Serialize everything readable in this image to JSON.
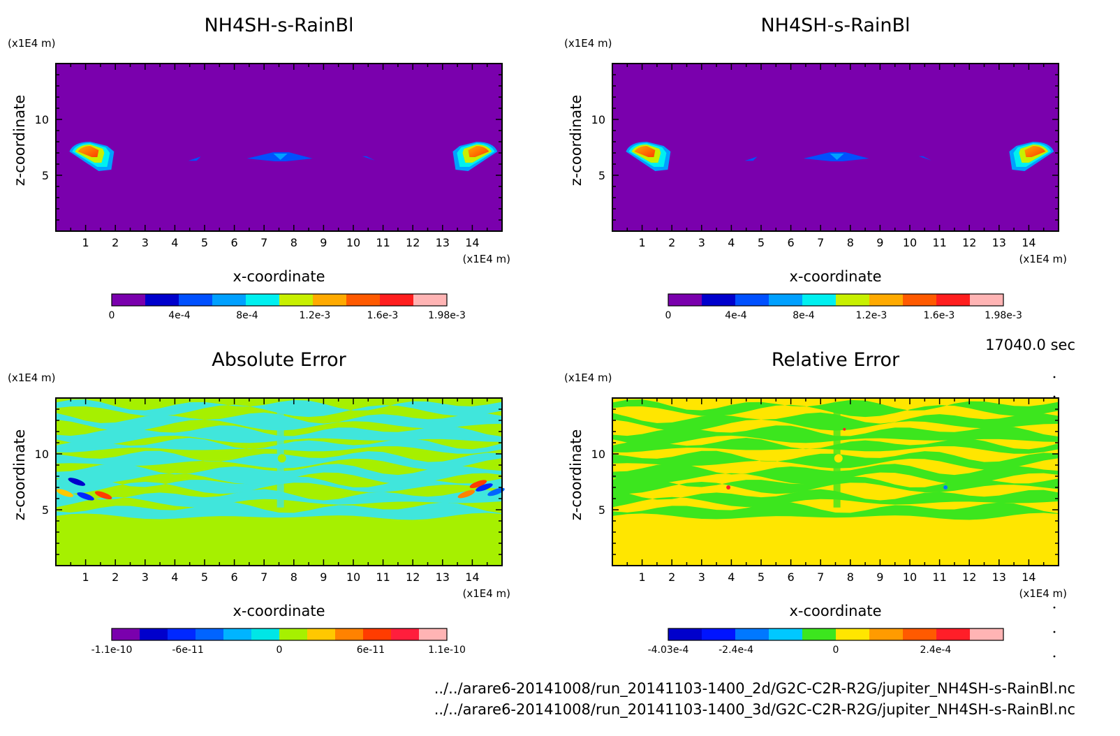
{
  "time_label": "17040.0 sec",
  "file_lines": [
    "../../arare6-20141008/run_20141103-1400_2d/G2C-C2R-R2G/jupiter_NH4SH-s-RainBl.nc",
    "../../arare6-20141008/run_20141103-1400_3d/G2C-C2R-R2G/jupiter_NH4SH-s-RainBl.nc"
  ],
  "chart_data": [
    {
      "type": "heatmap",
      "title": "NH4SH-s-RainBl",
      "xlabel": "x-coordinate",
      "ylabel": "z-coordinate",
      "x_unit": "(x1E4 m)",
      "y_unit": "(x1E4 m)",
      "xlim": [
        0,
        15
      ],
      "ylim": [
        0,
        15
      ],
      "x_ticks": [
        "1",
        "2",
        "3",
        "4",
        "5",
        "6",
        "7",
        "8",
        "9",
        "10",
        "11",
        "12",
        "13",
        "14"
      ],
      "y_ticks": [
        "5",
        "10"
      ],
      "background_color": "#7a00ad",
      "colorbar": {
        "colors": [
          "#7a00ad",
          "#0000cc",
          "#0050ff",
          "#00a0ff",
          "#00f0f0",
          "#c8f000",
          "#ffaa00",
          "#ff5a00",
          "#ff1e1e",
          "#ffb4b4"
        ],
        "labels": [
          "0",
          "4e-4",
          "8e-4",
          "1.2e-3",
          "1.6e-3",
          "1.98e-3"
        ],
        "range": [
          0,
          0.00198
        ]
      },
      "features": [
        "rain-blob-left",
        "rain-blob-right",
        "rain-band-center",
        "rain-streak-left",
        "rain-streak-right"
      ]
    },
    {
      "type": "heatmap",
      "title": "NH4SH-s-RainBl",
      "xlabel": "x-coordinate",
      "ylabel": "z-coordinate",
      "x_unit": "(x1E4 m)",
      "y_unit": "(x1E4 m)",
      "xlim": [
        0,
        15
      ],
      "ylim": [
        0,
        15
      ],
      "x_ticks": [
        "1",
        "2",
        "3",
        "4",
        "5",
        "6",
        "7",
        "8",
        "9",
        "10",
        "11",
        "12",
        "13",
        "14"
      ],
      "y_ticks": [
        "5",
        "10"
      ],
      "background_color": "#7a00ad",
      "colorbar": {
        "colors": [
          "#7a00ad",
          "#0000cc",
          "#0050ff",
          "#00a0ff",
          "#00f0f0",
          "#c8f000",
          "#ffaa00",
          "#ff5a00",
          "#ff1e1e",
          "#ffb4b4"
        ],
        "labels": [
          "0",
          "4e-4",
          "8e-4",
          "1.2e-3",
          "1.6e-3",
          "1.98e-3"
        ],
        "range": [
          0,
          0.00198
        ]
      },
      "features": [
        "rain-blob-left",
        "rain-blob-right",
        "rain-band-center",
        "rain-streak-left",
        "rain-streak-right"
      ]
    },
    {
      "type": "heatmap",
      "title": "Absolute Error",
      "xlabel": "x-coordinate",
      "ylabel": "z-coordinate",
      "x_unit": "(x1E4 m)",
      "y_unit": "(x1E4 m)",
      "xlim": [
        0,
        15
      ],
      "ylim": [
        0,
        15
      ],
      "x_ticks": [
        "1",
        "2",
        "3",
        "4",
        "5",
        "6",
        "7",
        "8",
        "9",
        "10",
        "11",
        "12",
        "13",
        "14"
      ],
      "y_ticks": [
        "5",
        "10"
      ],
      "background_color": "#a6f000",
      "pattern_color": "#40e6dc",
      "colorbar": {
        "colors": [
          "#7a00ad",
          "#0000cc",
          "#0028ff",
          "#0064ff",
          "#00b4ff",
          "#00e6e6",
          "#a6f000",
          "#ffc800",
          "#ff8200",
          "#ff3c00",
          "#ff1e3c",
          "#ffb4b4"
        ],
        "labels": [
          "-1.1e-10",
          "-6e-11",
          "0",
          "6e-11",
          "1.1e-10"
        ],
        "range": [
          -1.1e-10,
          1.1e-10
        ]
      }
    },
    {
      "type": "heatmap",
      "title": "Relative Error",
      "xlabel": "x-coordinate",
      "ylabel": "z-coordinate",
      "x_unit": "(x1E4 m)",
      "y_unit": "(x1E4 m)",
      "xlim": [
        0,
        15
      ],
      "ylim": [
        0,
        15
      ],
      "x_ticks": [
        "1",
        "2",
        "3",
        "4",
        "5",
        "6",
        "7",
        "8",
        "9",
        "10",
        "11",
        "12",
        "13",
        "14"
      ],
      "y_ticks": [
        "5",
        "10"
      ],
      "background_color": "#ffe600",
      "pattern_color": "#3ce61e",
      "colorbar": {
        "colors": [
          "#0000cc",
          "#0014ff",
          "#0078ff",
          "#00c8ff",
          "#3ce61e",
          "#ffe600",
          "#ff9b00",
          "#ff5a00",
          "#ff1e28",
          "#ffb4b4"
        ],
        "labels": [
          "-4.03e-4",
          "-2.4e-4",
          "0",
          "2.4e-4"
        ],
        "range": [
          -0.000403,
          0.000403
        ]
      }
    }
  ]
}
